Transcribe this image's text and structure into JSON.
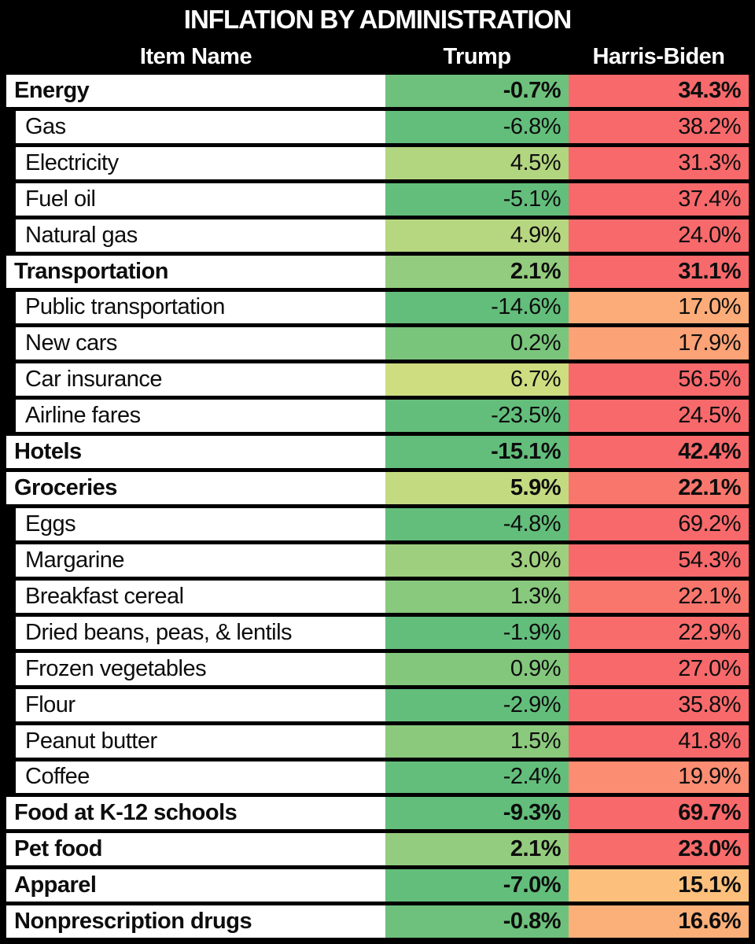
{
  "title": "INFLATION BY ADMINISTRATION",
  "columns": {
    "item": "Item Name",
    "trump": "Trump",
    "harris_biden": "Harris-Biden"
  },
  "colors": {
    "frame": "#000000",
    "item_cell_bg": "#FFFFFF",
    "header_text": "#FFFFFF",
    "body_text": "#0D0D0D",
    "scale_green": "#63BE7B",
    "scale_yellow": "#FFEB84",
    "scale_red": "#F8696B"
  },
  "rows": [
    {
      "item": "Energy",
      "bold": true,
      "indent": false,
      "trump": "-0.7%",
      "harris_biden": "34.3%",
      "trump_color": "#6EC17C",
      "harris_biden_color": "#F8696B"
    },
    {
      "item": "Gas",
      "bold": false,
      "indent": true,
      "trump": "-6.8%",
      "harris_biden": "38.2%",
      "trump_color": "#63BE7B",
      "harris_biden_color": "#F8696B"
    },
    {
      "item": "Electricity",
      "bold": false,
      "indent": true,
      "trump": "4.5%",
      "harris_biden": "31.3%",
      "trump_color": "#B2D580",
      "harris_biden_color": "#F8696B"
    },
    {
      "item": "Fuel oil",
      "bold": false,
      "indent": true,
      "trump": "-5.1%",
      "harris_biden": "37.4%",
      "trump_color": "#63BE7B",
      "harris_biden_color": "#F8696B"
    },
    {
      "item": "Natural gas",
      "bold": false,
      "indent": true,
      "trump": "4.9%",
      "harris_biden": "24.0%",
      "trump_color": "#B7D680",
      "harris_biden_color": "#F8696B"
    },
    {
      "item": "Transportation",
      "bold": true,
      "indent": false,
      "trump": "2.1%",
      "harris_biden": "31.1%",
      "trump_color": "#93CC7E",
      "harris_biden_color": "#F8696B"
    },
    {
      "item": "Public transportation",
      "bold": false,
      "indent": true,
      "trump": "-14.6%",
      "harris_biden": "17.0%",
      "trump_color": "#63BE7B",
      "harris_biden_color": "#FCAC78"
    },
    {
      "item": "New cars",
      "bold": false,
      "indent": true,
      "trump": "0.2%",
      "harris_biden": "17.9%",
      "trump_color": "#7AC57C",
      "harris_biden_color": "#FBA276"
    },
    {
      "item": "Car insurance",
      "bold": false,
      "indent": true,
      "trump": "6.7%",
      "harris_biden": "56.5%",
      "trump_color": "#CFDD81",
      "harris_biden_color": "#F8696B"
    },
    {
      "item": "Airline fares",
      "bold": false,
      "indent": true,
      "trump": "-23.5%",
      "harris_biden": "24.5%",
      "trump_color": "#63BE7B",
      "harris_biden_color": "#F8696B"
    },
    {
      "item": "Hotels",
      "bold": true,
      "indent": false,
      "trump": "-15.1%",
      "harris_biden": "42.4%",
      "trump_color": "#63BE7B",
      "harris_biden_color": "#F8696B"
    },
    {
      "item": "Groceries",
      "bold": true,
      "indent": false,
      "trump": "5.9%",
      "harris_biden": "22.1%",
      "trump_color": "#C4DA81",
      "harris_biden_color": "#F9766D"
    },
    {
      "item": "Eggs",
      "bold": false,
      "indent": true,
      "trump": "-4.8%",
      "harris_biden": "69.2%",
      "trump_color": "#63BE7B",
      "harris_biden_color": "#F8696B"
    },
    {
      "item": "Margarine",
      "bold": false,
      "indent": true,
      "trump": "3.0%",
      "harris_biden": "54.3%",
      "trump_color": "#9ECF7E",
      "harris_biden_color": "#F8696B"
    },
    {
      "item": "Breakfast cereal",
      "bold": false,
      "indent": true,
      "trump": "1.3%",
      "harris_biden": "22.1%",
      "trump_color": "#88C97D",
      "harris_biden_color": "#F9766D"
    },
    {
      "item": "Dried beans, peas, & lentils",
      "bold": false,
      "indent": true,
      "trump": "-1.9%",
      "harris_biden": "22.9%",
      "trump_color": "#63BE7B",
      "harris_biden_color": "#F86D6C"
    },
    {
      "item": "Frozen vegetables",
      "bold": false,
      "indent": true,
      "trump": "0.9%",
      "harris_biden": "27.0%",
      "trump_color": "#83C77D",
      "harris_biden_color": "#F8696B"
    },
    {
      "item": "Flour",
      "bold": false,
      "indent": true,
      "trump": "-2.9%",
      "harris_biden": "35.8%",
      "trump_color": "#63BE7B",
      "harris_biden_color": "#F8696B"
    },
    {
      "item": "Peanut butter",
      "bold": false,
      "indent": true,
      "trump": "1.5%",
      "harris_biden": "41.8%",
      "trump_color": "#8BC97D",
      "harris_biden_color": "#F8696B"
    },
    {
      "item": "Coffee",
      "bold": false,
      "indent": true,
      "trump": "-2.4%",
      "harris_biden": "19.9%",
      "trump_color": "#63BE7B",
      "harris_biden_color": "#FA8D72"
    },
    {
      "item": "Food at K-12 schools",
      "bold": true,
      "indent": false,
      "trump": "-9.3%",
      "harris_biden": "69.7%",
      "trump_color": "#63BE7B",
      "harris_biden_color": "#F8696B"
    },
    {
      "item": "Pet food",
      "bold": true,
      "indent": false,
      "trump": "2.1%",
      "harris_biden": "23.0%",
      "trump_color": "#93CC7E",
      "harris_biden_color": "#F86C6C"
    },
    {
      "item": "Apparel",
      "bold": true,
      "indent": false,
      "trump": "-7.0%",
      "harris_biden": "15.1%",
      "trump_color": "#63BE7B",
      "harris_biden_color": "#FDC07C"
    },
    {
      "item": "Nonprescription drugs",
      "bold": true,
      "indent": false,
      "trump": "-0.8%",
      "harris_biden": "16.6%",
      "trump_color": "#6DC17C",
      "harris_biden_color": "#FCB079"
    }
  ],
  "chart_data": {
    "type": "table",
    "title": "INFLATION BY ADMINISTRATION",
    "columns": [
      "Item Name",
      "Trump",
      "Harris-Biden"
    ],
    "categories": [
      "Energy",
      "Gas",
      "Electricity",
      "Fuel oil",
      "Natural gas",
      "Transportation",
      "Public transportation",
      "New cars",
      "Car insurance",
      "Airline fares",
      "Hotels",
      "Groceries",
      "Eggs",
      "Margarine",
      "Breakfast cereal",
      "Dried beans, peas, & lentils",
      "Frozen vegetables",
      "Flour",
      "Peanut butter",
      "Coffee",
      "Food at K-12 schools",
      "Pet food",
      "Apparel",
      "Nonprescription drugs"
    ],
    "series": [
      {
        "name": "Trump",
        "values": [
          -0.7,
          -6.8,
          4.5,
          -5.1,
          4.9,
          2.1,
          -14.6,
          0.2,
          6.7,
          -23.5,
          -15.1,
          5.9,
          -4.8,
          3.0,
          1.3,
          -1.9,
          0.9,
          -2.9,
          1.5,
          -2.4,
          -9.3,
          2.1,
          -7.0,
          -0.8
        ]
      },
      {
        "name": "Harris-Biden",
        "values": [
          34.3,
          38.2,
          31.3,
          37.4,
          24.0,
          31.1,
          17.0,
          17.9,
          56.5,
          24.5,
          42.4,
          22.1,
          69.2,
          54.3,
          22.1,
          22.9,
          27.0,
          35.8,
          41.8,
          19.9,
          69.7,
          23.0,
          15.1,
          16.6
        ]
      }
    ],
    "units": "percent",
    "value_format": "0.0%",
    "layout": "heatmap-colored value cells, green (low/negative) through yellow/orange to red (high), bold rows are category headers",
    "legend_position": "none",
    "grid": "black cell borders"
  }
}
